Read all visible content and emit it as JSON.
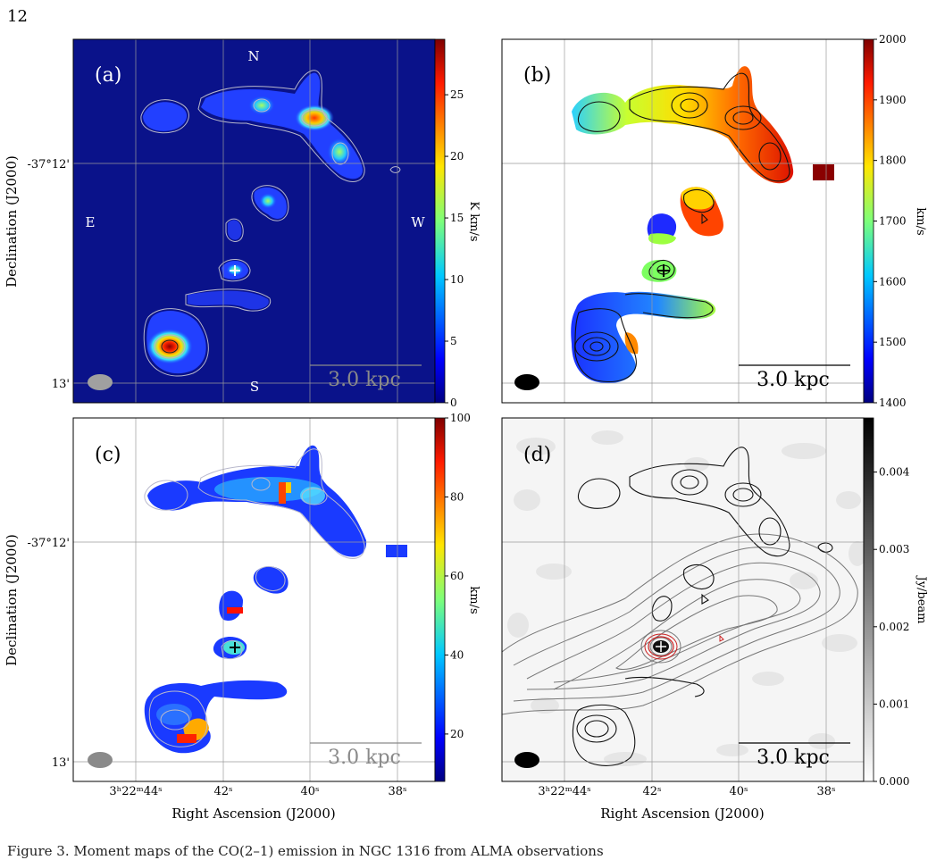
{
  "page_number": "12",
  "caption_fragment": "Figure 3. Moment maps of the CO(2–1) emission in NGC 1316 from ALMA observations",
  "axes": {
    "ylabel": "Declination (J2000)",
    "xlabel": "Right Ascension (J2000)",
    "dec_ticks": [
      "-37°12'",
      "13'"
    ],
    "ra_ticks": [
      "3ʰ22ᵐ44ˢ",
      "42ˢ",
      "40ˢ",
      "38ˢ"
    ]
  },
  "panels": [
    {
      "id": "a",
      "label": "(a)",
      "compass": {
        "north": "N",
        "south": "S",
        "east": "E",
        "west": "W"
      },
      "colorbar_label": "K km/s",
      "colorbar_ticks": [
        "0",
        "5",
        "10",
        "15",
        "20",
        "25"
      ],
      "colorbar_range": [
        0,
        29.5
      ],
      "scalebar": "3.0 kpc"
    },
    {
      "id": "b",
      "label": "(b)",
      "colorbar_label": "km/s",
      "colorbar_ticks": [
        "1400",
        "1500",
        "1600",
        "1700",
        "1800",
        "1900",
        "2000"
      ],
      "colorbar_range": [
        1400,
        2000
      ],
      "scalebar": "3.0 kpc"
    },
    {
      "id": "c",
      "label": "(c)",
      "colorbar_label": "km/s",
      "colorbar_ticks": [
        "20",
        "40",
        "60",
        "80",
        "100"
      ],
      "colorbar_range": [
        8,
        100
      ],
      "scalebar": "3.0 kpc"
    },
    {
      "id": "d",
      "label": "(d)",
      "colorbar_label": "Jy/beam",
      "colorbar_ticks": [
        "0.000",
        "0.001",
        "0.002",
        "0.003",
        "0.004"
      ],
      "colorbar_range": [
        0,
        0.0047
      ],
      "scalebar": "3.0 kpc"
    }
  ],
  "colors": {
    "map_bg": "#0a128a",
    "contour_light": "#b8b8cc",
    "contour_dark": "#111111",
    "grid": "#9a9a9a"
  }
}
